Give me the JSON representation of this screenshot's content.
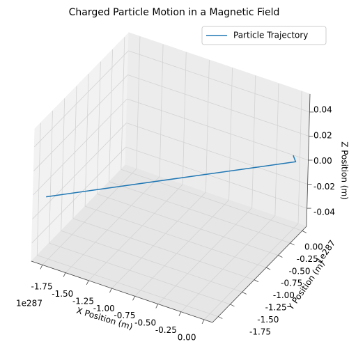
{
  "chart_data": {
    "type": "line3d",
    "title": "Charged Particle Motion in a Magnetic Field",
    "xlabel": "X Position (m)",
    "ylabel": "Y Position (m)",
    "zlabel": "Z Position (m)",
    "x_offset_label": "1e287",
    "y_offset_label": "1e287",
    "series": [
      {
        "name": "Particle Trajectory",
        "color": "#1f77b4",
        "x": [
          -0.07,
          0.0,
          -1.75
        ],
        "y": [
          0.085,
          0.0,
          -1.83
        ],
        "z": [
          0,
          0,
          0
        ]
      }
    ],
    "xlim": [
      -1.87,
      0.09
    ],
    "ylim": [
      -1.87,
      0.09
    ],
    "zlim": [
      -0.055,
      0.055
    ],
    "xticks": [
      {
        "value": -1.75,
        "label": "-1.75"
      },
      {
        "value": -1.5,
        "label": "-1.50"
      },
      {
        "value": -1.25,
        "label": "-1.25"
      },
      {
        "value": -1.0,
        "label": "-1.00"
      },
      {
        "value": -0.75,
        "label": "-0.75"
      },
      {
        "value": -0.5,
        "label": "-0.50"
      },
      {
        "value": -0.25,
        "label": "-0.25"
      },
      {
        "value": 0,
        "label": "0.00"
      }
    ],
    "yticks": [
      {
        "value": -1.75,
        "label": "-1.75"
      },
      {
        "value": -1.5,
        "label": "-1.50"
      },
      {
        "value": -1.25,
        "label": "-1.25"
      },
      {
        "value": -1.0,
        "label": "-1.00"
      },
      {
        "value": -0.75,
        "label": "-0.75"
      },
      {
        "value": -0.5,
        "label": "-0.50"
      },
      {
        "value": -0.25,
        "label": "-0.25"
      },
      {
        "value": 0,
        "label": "0.00"
      }
    ],
    "zticks": [
      {
        "value": -0.04,
        "label": "-0.04"
      },
      {
        "value": -0.02,
        "label": "-0.02"
      },
      {
        "value": 0,
        "label": "0.00"
      },
      {
        "value": 0.02,
        "label": "0.02"
      },
      {
        "value": 0.04,
        "label": "0.04"
      }
    ],
    "grid": true,
    "legend": "upper right"
  }
}
